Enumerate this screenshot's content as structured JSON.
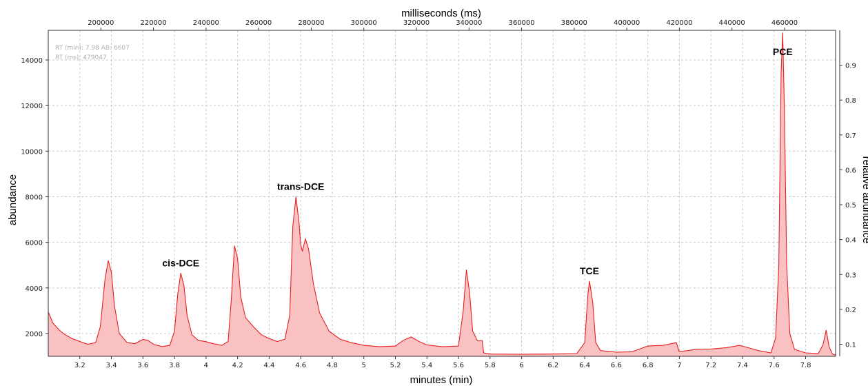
{
  "chart_data": {
    "type": "area",
    "series": [
      {
        "color": "#e62020",
        "fill": "#f9c1c1",
        "points": [
          [
            3.0,
            2950
          ],
          [
            3.03,
            2450
          ],
          [
            3.07,
            2150
          ],
          [
            3.1,
            1980
          ],
          [
            3.15,
            1780
          ],
          [
            3.2,
            1650
          ],
          [
            3.25,
            1530
          ],
          [
            3.3,
            1600
          ],
          [
            3.33,
            2300
          ],
          [
            3.36,
            4400
          ],
          [
            3.38,
            5200
          ],
          [
            3.4,
            4700
          ],
          [
            3.42,
            3200
          ],
          [
            3.45,
            2000
          ],
          [
            3.5,
            1600
          ],
          [
            3.55,
            1560
          ],
          [
            3.6,
            1740
          ],
          [
            3.63,
            1700
          ],
          [
            3.67,
            1520
          ],
          [
            3.72,
            1430
          ],
          [
            3.77,
            1480
          ],
          [
            3.8,
            2100
          ],
          [
            3.82,
            3700
          ],
          [
            3.84,
            4650
          ],
          [
            3.86,
            4100
          ],
          [
            3.88,
            2800
          ],
          [
            3.91,
            1950
          ],
          [
            3.95,
            1700
          ],
          [
            4.0,
            1640
          ],
          [
            4.05,
            1550
          ],
          [
            4.1,
            1480
          ],
          [
            4.14,
            1650
          ],
          [
            4.16,
            3500
          ],
          [
            4.18,
            5850
          ],
          [
            4.2,
            5300
          ],
          [
            4.22,
            3600
          ],
          [
            4.25,
            2700
          ],
          [
            4.3,
            2300
          ],
          [
            4.35,
            1950
          ],
          [
            4.4,
            1780
          ],
          [
            4.45,
            1650
          ],
          [
            4.5,
            1750
          ],
          [
            4.53,
            2800
          ],
          [
            4.55,
            6700
          ],
          [
            4.57,
            8000
          ],
          [
            4.59,
            6800
          ],
          [
            4.6,
            5900
          ],
          [
            4.61,
            5600
          ],
          [
            4.63,
            6150
          ],
          [
            4.65,
            5700
          ],
          [
            4.68,
            4200
          ],
          [
            4.72,
            2900
          ],
          [
            4.78,
            2100
          ],
          [
            4.85,
            1750
          ],
          [
            4.92,
            1600
          ],
          [
            5.0,
            1480
          ],
          [
            5.1,
            1420
          ],
          [
            5.2,
            1450
          ],
          [
            5.25,
            1700
          ],
          [
            5.3,
            1850
          ],
          [
            5.35,
            1650
          ],
          [
            5.4,
            1500
          ],
          [
            5.5,
            1420
          ],
          [
            5.6,
            1450
          ],
          [
            5.63,
            3000
          ],
          [
            5.65,
            4800
          ],
          [
            5.67,
            3800
          ],
          [
            5.69,
            2100
          ],
          [
            5.72,
            1680
          ],
          [
            5.75,
            1680
          ],
          [
            5.76,
            1150
          ],
          [
            5.8,
            1100
          ],
          [
            6.0,
            1090
          ],
          [
            6.2,
            1100
          ],
          [
            6.35,
            1120
          ],
          [
            6.4,
            1600
          ],
          [
            6.42,
            3700
          ],
          [
            6.43,
            4300
          ],
          [
            6.45,
            3400
          ],
          [
            6.47,
            1600
          ],
          [
            6.5,
            1250
          ],
          [
            6.6,
            1180
          ],
          [
            6.7,
            1200
          ],
          [
            6.8,
            1450
          ],
          [
            6.9,
            1480
          ],
          [
            6.98,
            1600
          ],
          [
            7.0,
            1200
          ],
          [
            7.1,
            1300
          ],
          [
            7.2,
            1320
          ],
          [
            7.3,
            1380
          ],
          [
            7.38,
            1480
          ],
          [
            7.45,
            1350
          ],
          [
            7.5,
            1250
          ],
          [
            7.58,
            1150
          ],
          [
            7.61,
            1800
          ],
          [
            7.63,
            5000
          ],
          [
            7.645,
            13500
          ],
          [
            7.655,
            15200
          ],
          [
            7.665,
            12000
          ],
          [
            7.68,
            5000
          ],
          [
            7.7,
            2000
          ],
          [
            7.73,
            1300
          ],
          [
            7.8,
            1150
          ],
          [
            7.88,
            1120
          ],
          [
            7.91,
            1500
          ],
          [
            7.93,
            2150
          ],
          [
            7.95,
            1400
          ],
          [
            7.97,
            1100
          ],
          [
            7.99,
            1050
          ]
        ]
      }
    ],
    "xlabel": "minutes (min)",
    "x_top_label": "milliseconds (ms)",
    "ylabel": "abundance",
    "y2label": "relative abundance",
    "xlim": [
      3.0,
      7.99
    ],
    "ylim": [
      1000,
      15300
    ],
    "x_ticks": [
      "3.2",
      "3.4",
      "3.6",
      "3.8",
      "4",
      "4.2",
      "4.4",
      "4.6",
      "4.8",
      "5",
      "5.2",
      "5.4",
      "5.6",
      "5.8",
      "6",
      "6.2",
      "6.4",
      "6.6",
      "6.8",
      "7",
      "7.2",
      "7.4",
      "7.6",
      "7.8"
    ],
    "x_top_ticks": [
      "200000",
      "220000",
      "240000",
      "260000",
      "280000",
      "300000",
      "320000",
      "340000",
      "360000",
      "380000",
      "400000",
      "420000",
      "440000",
      "460000"
    ],
    "y_ticks": [
      "2000",
      "4000",
      "6000",
      "8000",
      "10000",
      "12000",
      "14000"
    ],
    "y2_ticks": [
      "0.1",
      "0.2",
      "0.3",
      "0.4",
      "0.5",
      "0.6",
      "0.7",
      "0.8",
      "0.9"
    ],
    "annotations": [
      {
        "text": "cis-DCE",
        "x": 3.84,
        "y": 4650
      },
      {
        "text": "trans-DCE",
        "x": 4.6,
        "y": 8000
      },
      {
        "text": "TCE",
        "x": 6.43,
        "y": 4300
      },
      {
        "text": "PCE",
        "x": 7.655,
        "y": 15200
      }
    ],
    "readout": {
      "line1": "RT (min): 7.98 AB: 6607",
      "line2": "RT (ms): 479047"
    },
    "grid": true
  }
}
